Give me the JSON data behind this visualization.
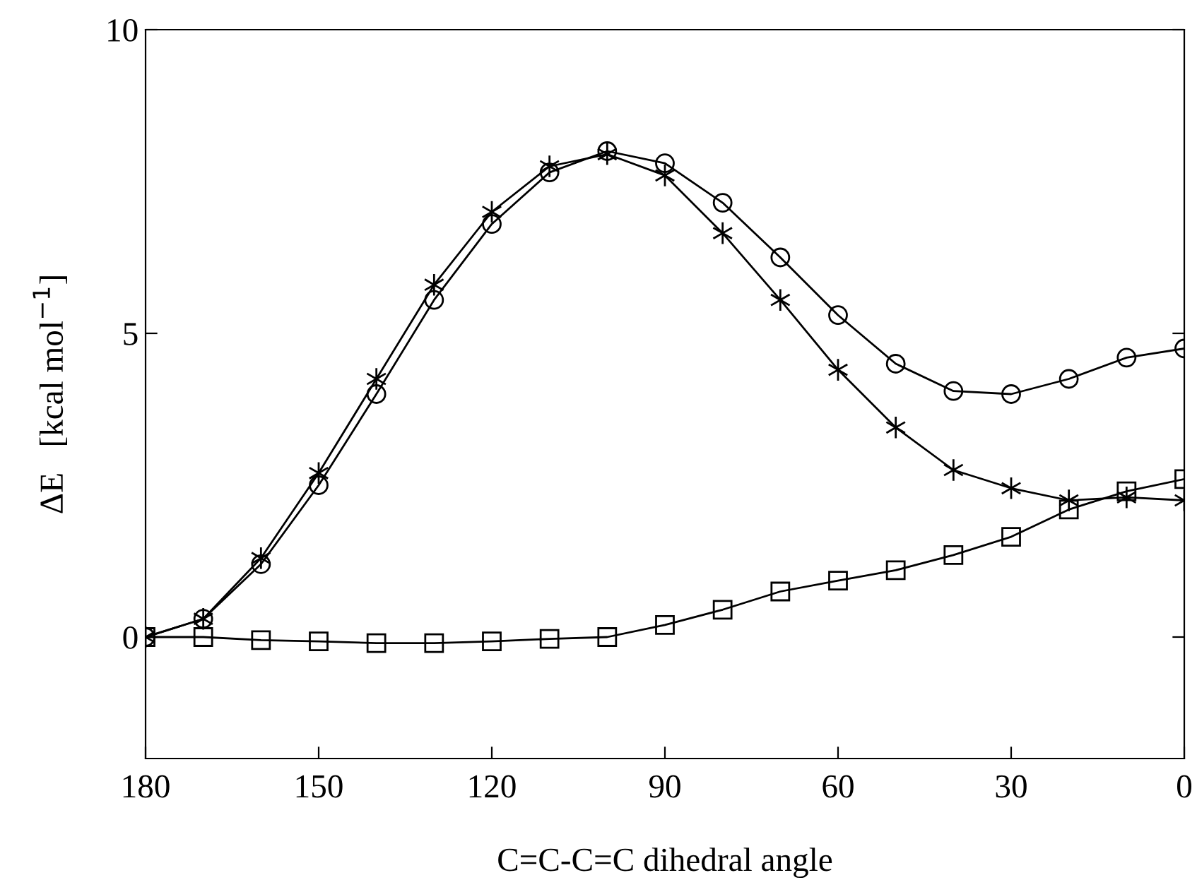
{
  "chart_data": {
    "type": "line",
    "xlabel": "C=C-C=C dihedral angle",
    "ylabel": "ΔE   [kcal mol$^{−1}$]",
    "x": [
      180,
      170,
      160,
      150,
      140,
      130,
      120,
      110,
      100,
      90,
      80,
      70,
      60,
      50,
      40,
      30,
      20,
      10,
      0
    ],
    "series": [
      {
        "color": "#000000",
        "marker": "circle",
        "values": [
          0,
          0.3,
          1.2,
          2.5,
          4.0,
          5.55,
          6.8,
          7.65,
          8.0,
          7.8,
          7.15,
          6.25,
          5.3,
          4.5,
          4.05,
          4.0,
          4.25,
          4.6,
          4.75
        ]
      },
      {
        "color": "#000000",
        "marker": "cross",
        "values": [
          0,
          0.3,
          1.3,
          2.7,
          4.25,
          5.8,
          7.0,
          7.75,
          7.95,
          7.6,
          6.65,
          5.55,
          4.4,
          3.45,
          2.75,
          2.45,
          2.25,
          2.3,
          2.25
        ]
      },
      {
        "color": "#000000",
        "marker": "square",
        "values": [
          0,
          0,
          -0.05,
          -0.07,
          -0.1,
          -0.1,
          -0.07,
          -0.03,
          0,
          0.2,
          0.45,
          0.75,
          0.93,
          1.1,
          1.35,
          1.65,
          2.1,
          2.4,
          2.6
        ]
      }
    ],
    "xlim": [
      180,
      0
    ],
    "xticks": [
      180,
      150,
      120,
      90,
      60,
      30,
      0
    ],
    "ylim": [
      -2,
      10
    ],
    "yticks": [
      0,
      5,
      10
    ],
    "grid": false,
    "legend": false,
    "line_style": "solid"
  }
}
